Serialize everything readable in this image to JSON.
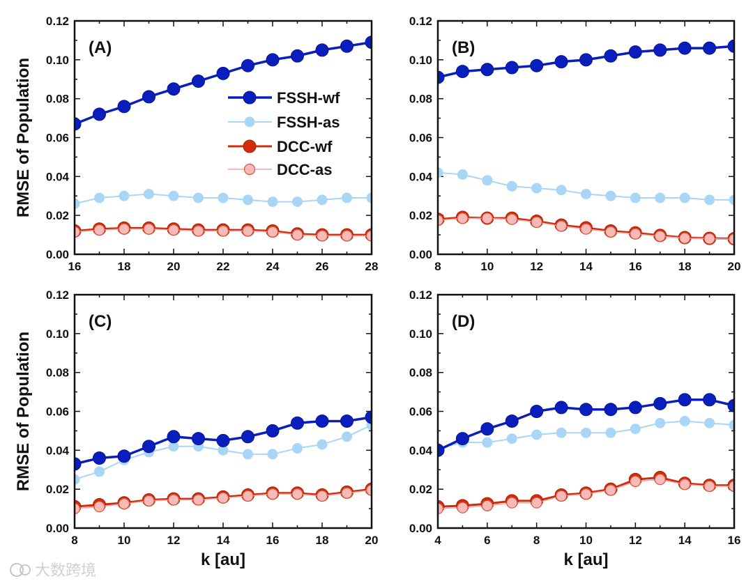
{
  "chart_data": [
    {
      "type": "line",
      "panel_label": "(A)",
      "xlabel": "",
      "ylabel": "RMSE of Population",
      "xlim": [
        16,
        28
      ],
      "ylim": [
        0,
        0.12
      ],
      "xticks": [
        "16",
        "18",
        "20",
        "22",
        "24",
        "26",
        "28"
      ],
      "yticks": [
        "0.00",
        "0.02",
        "0.04",
        "0.06",
        "0.08",
        "0.10",
        "0.12"
      ],
      "legend": "center-right",
      "x": [
        16,
        17,
        18,
        19,
        20,
        21,
        22,
        23,
        24,
        25,
        26,
        27,
        28
      ],
      "series": [
        {
          "name": "FSSH-wf",
          "values": [
            0.067,
            0.072,
            0.076,
            0.081,
            0.085,
            0.089,
            0.093,
            0.097,
            0.1,
            0.102,
            0.105,
            0.107,
            0.109
          ]
        },
        {
          "name": "FSSH-as",
          "values": [
            0.026,
            0.029,
            0.03,
            0.031,
            0.03,
            0.029,
            0.029,
            0.028,
            0.027,
            0.027,
            0.028,
            0.029,
            0.029
          ]
        },
        {
          "name": "DCC-wf",
          "values": [
            0.012,
            0.013,
            0.0135,
            0.0135,
            0.013,
            0.0125,
            0.0125,
            0.0125,
            0.012,
            0.0105,
            0.01,
            0.01,
            0.01
          ]
        },
        {
          "name": "DCC-as",
          "values": [
            0.0115,
            0.0125,
            0.013,
            0.013,
            0.0125,
            0.012,
            0.012,
            0.012,
            0.0115,
            0.01,
            0.0095,
            0.0095,
            0.0095
          ]
        }
      ]
    },
    {
      "type": "line",
      "panel_label": "(B)",
      "xlabel": "",
      "ylabel": "",
      "xlim": [
        8,
        20
      ],
      "ylim": [
        0,
        0.12
      ],
      "xticks": [
        "8",
        "10",
        "12",
        "14",
        "16",
        "18",
        "20"
      ],
      "yticks": [
        "0.00",
        "0.02",
        "0.04",
        "0.06",
        "0.08",
        "0.10",
        "0.12"
      ],
      "x": [
        8,
        9,
        10,
        11,
        12,
        13,
        14,
        15,
        16,
        17,
        18,
        19,
        20
      ],
      "series": [
        {
          "name": "FSSH-wf",
          "values": [
            0.091,
            0.094,
            0.095,
            0.096,
            0.097,
            0.099,
            0.1,
            0.102,
            0.104,
            0.105,
            0.106,
            0.106,
            0.107
          ]
        },
        {
          "name": "FSSH-as",
          "values": [
            0.042,
            0.041,
            0.038,
            0.035,
            0.034,
            0.033,
            0.031,
            0.03,
            0.029,
            0.029,
            0.029,
            0.028,
            0.028
          ]
        },
        {
          "name": "DCC-wf",
          "values": [
            0.018,
            0.019,
            0.0186,
            0.0186,
            0.017,
            0.015,
            0.0136,
            0.012,
            0.011,
            0.0097,
            0.0086,
            0.0082,
            0.008
          ]
        },
        {
          "name": "DCC-as",
          "values": [
            0.0175,
            0.0185,
            0.0185,
            0.018,
            0.0165,
            0.0145,
            0.013,
            0.0115,
            0.0105,
            0.0093,
            0.0083,
            0.008,
            0.0078
          ]
        }
      ]
    },
    {
      "type": "line",
      "panel_label": "(C)",
      "xlabel": "k [au]",
      "ylabel": "RMSE of Population",
      "xlim": [
        8,
        20
      ],
      "ylim": [
        0,
        0.12
      ],
      "xticks": [
        "8",
        "10",
        "12",
        "14",
        "16",
        "18",
        "20"
      ],
      "yticks": [
        "0.00",
        "0.02",
        "0.04",
        "0.06",
        "0.08",
        "0.10",
        "0.12"
      ],
      "x": [
        8,
        9,
        10,
        11,
        12,
        13,
        14,
        15,
        16,
        17,
        18,
        19,
        20
      ],
      "series": [
        {
          "name": "FSSH-wf",
          "values": [
            0.033,
            0.036,
            0.037,
            0.042,
            0.047,
            0.046,
            0.045,
            0.047,
            0.05,
            0.054,
            0.055,
            0.055,
            0.057
          ]
        },
        {
          "name": "FSSH-as",
          "values": [
            0.025,
            0.029,
            0.035,
            0.039,
            0.042,
            0.042,
            0.04,
            0.038,
            0.038,
            0.041,
            0.043,
            0.047,
            0.053
          ]
        },
        {
          "name": "DCC-wf",
          "values": [
            0.011,
            0.012,
            0.013,
            0.0145,
            0.015,
            0.015,
            0.016,
            0.017,
            0.018,
            0.018,
            0.017,
            0.0185,
            0.02
          ]
        },
        {
          "name": "DCC-as",
          "values": [
            0.01,
            0.011,
            0.0125,
            0.014,
            0.0145,
            0.0145,
            0.0155,
            0.0165,
            0.0175,
            0.0175,
            0.0165,
            0.018,
            0.0195
          ]
        }
      ]
    },
    {
      "type": "line",
      "panel_label": "(D)",
      "xlabel": "k [au]",
      "ylabel": "",
      "xlim": [
        4,
        16
      ],
      "ylim": [
        0,
        0.12
      ],
      "xticks": [
        "4",
        "6",
        "8",
        "10",
        "12",
        "14",
        "16"
      ],
      "yticks": [
        "0.00",
        "0.02",
        "0.04",
        "0.06",
        "0.08",
        "0.10",
        "0.12"
      ],
      "x": [
        4,
        5,
        6,
        7,
        8,
        9,
        10,
        11,
        12,
        13,
        14,
        15,
        16
      ],
      "series": [
        {
          "name": "FSSH-wf",
          "values": [
            0.04,
            0.046,
            0.051,
            0.055,
            0.06,
            0.062,
            0.061,
            0.061,
            0.062,
            0.064,
            0.066,
            0.066,
            0.063
          ]
        },
        {
          "name": "FSSH-as",
          "values": [
            0.041,
            0.044,
            0.044,
            0.046,
            0.048,
            0.049,
            0.049,
            0.049,
            0.051,
            0.054,
            0.055,
            0.054,
            0.053
          ]
        },
        {
          "name": "DCC-wf",
          "values": [
            0.011,
            0.0115,
            0.0125,
            0.014,
            0.014,
            0.017,
            0.018,
            0.02,
            0.025,
            0.026,
            0.023,
            0.022,
            0.022
          ]
        },
        {
          "name": "DCC-as",
          "values": [
            0.01,
            0.0105,
            0.0115,
            0.013,
            0.013,
            0.0165,
            0.0175,
            0.0195,
            0.024,
            0.025,
            0.0225,
            0.0215,
            0.0215
          ]
        }
      ]
    }
  ],
  "colors": {
    "FSSH-wf": "#0a1ebe",
    "FSSH-as": "#a9d6f7",
    "DCC-wf": "#d02c0c",
    "DCC-as": "#f8b9b9"
  },
  "watermark": "大数跨境"
}
